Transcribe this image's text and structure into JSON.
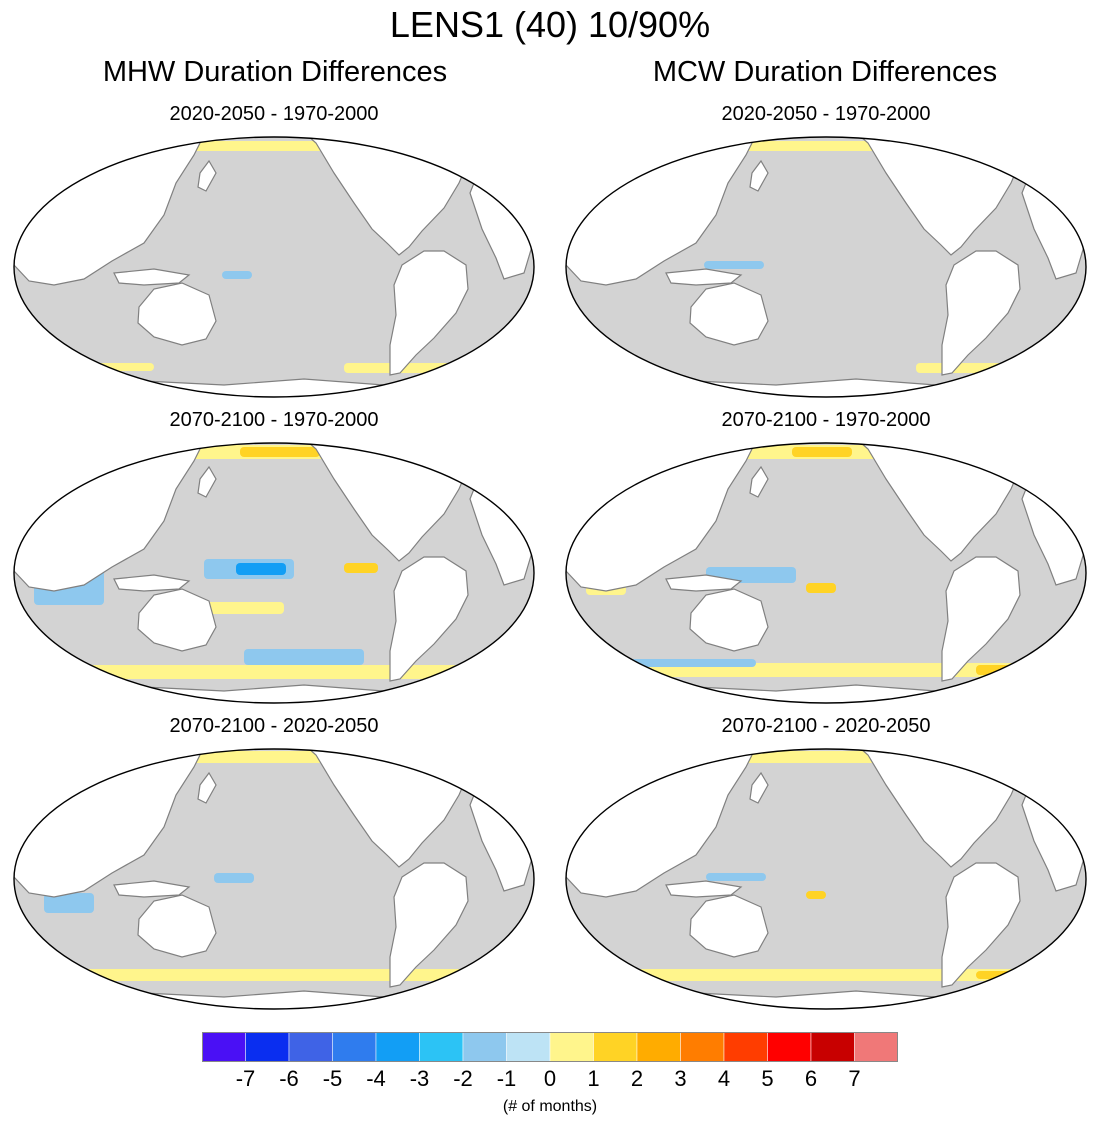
{
  "figure": {
    "title": "LENS1 (40) 10/90%",
    "columns": [
      {
        "title": "MHW Duration Differences"
      },
      {
        "title": "MCW Duration Differences"
      }
    ],
    "panels": [
      {
        "title": "2020-2050 - 1970-2000",
        "variable": "MHW"
      },
      {
        "title": "2020-2050 - 1970-2000",
        "variable": "MCW"
      },
      {
        "title": "2070-2100 - 1970-2000",
        "variable": "MHW"
      },
      {
        "title": "2070-2100 - 1970-2000",
        "variable": "MCW"
      },
      {
        "title": "2070-2100 - 2020-2050",
        "variable": "MHW"
      },
      {
        "title": "2070-2100 - 2020-2050",
        "variable": "MCW"
      }
    ],
    "colors": {
      "ocean_no_change": "#d3d3d3",
      "land": "#ffffff",
      "coastline": "#808080"
    },
    "colorbar": {
      "labels": [
        "-7",
        "-6",
        "-5",
        "-4",
        "-3",
        "-2",
        "-1",
        "0",
        "1",
        "2",
        "3",
        "4",
        "5",
        "6",
        "7"
      ],
      "colors": [
        "#4a10f5",
        "#0a2ef0",
        "#3f63e6",
        "#2f7cee",
        "#129ef5",
        "#2cc3f5",
        "#8ec8ee",
        "#bde3f5",
        "#fff58c",
        "#ffd325",
        "#ffac00",
        "#ff7d00",
        "#ff3d00",
        "#ff0000",
        "#c80000",
        "#f07878"
      ],
      "units": "(# of months)"
    }
  }
}
